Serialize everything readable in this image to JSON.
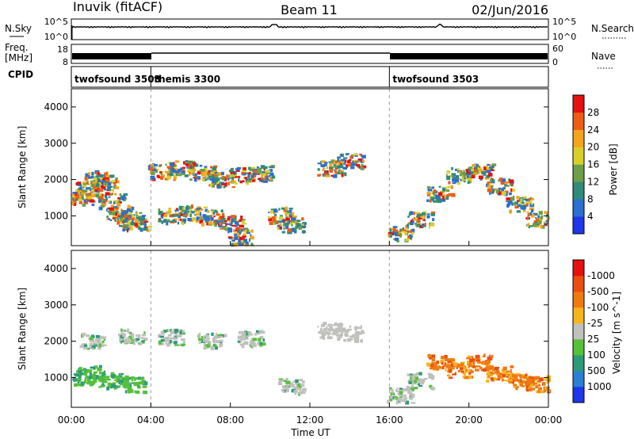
{
  "header": {
    "station": "Inuvik (fitACF)",
    "beam": "Beam 11",
    "date": "02/Jun/2016"
  },
  "strips": {
    "nsky_label": "N.Sky",
    "nsearch_label": "N.Search",
    "noise_ticks": [
      "10^5",
      "10^0"
    ],
    "freq_label_1": "Freq.",
    "freq_label_2": "[MHz]",
    "freq_ticks": [
      "18",
      "8"
    ],
    "nave_label": "Nave",
    "nave_ticks": [
      "60",
      "0"
    ],
    "cpid_label": "CPID",
    "cpid_segments": [
      {
        "name": "twofsound 3503",
        "start": 0,
        "end": 4
      },
      {
        "name": "themis 3300",
        "start": 4,
        "end": 16
      },
      {
        "name": "twofsound 3503",
        "start": 16,
        "end": 24
      }
    ]
  },
  "chart_data": [
    {
      "type": "heatmap",
      "title": "",
      "xlabel": "Time UT",
      "ylabel": "Slant Range [km]",
      "xlim": [
        0,
        24
      ],
      "ylim": [
        180,
        4500
      ],
      "y_ticks": [
        "1000",
        "2000",
        "3000",
        "4000"
      ],
      "colorbar": {
        "label": "Power [dB]",
        "ticks": [
          "4",
          "8",
          "12",
          "16",
          "20",
          "24",
          "28"
        ],
        "colors": [
          "#1f37e8",
          "#2b6fd0",
          "#2f8a79",
          "#6e9e4a",
          "#d8cf2e",
          "#f3a51d",
          "#ec5d16",
          "#e51010"
        ]
      },
      "series": [
        {
          "name": "",
          "points": [
            [
              0.4,
              1500
            ],
            [
              0.8,
              1700
            ],
            [
              1.2,
              2000
            ],
            [
              1.6,
              1900
            ],
            [
              2.0,
              1400
            ],
            [
              2.4,
              1050
            ],
            [
              2.8,
              900
            ],
            [
              3.2,
              800
            ],
            [
              4.5,
              2200
            ],
            [
              5.5,
              2300
            ],
            [
              6.5,
              2200
            ],
            [
              7.5,
              2000
            ],
            [
              8.5,
              2100
            ],
            [
              9.5,
              2150
            ],
            [
              5.0,
              1000
            ],
            [
              6.0,
              1050
            ],
            [
              7.0,
              950
            ],
            [
              8.0,
              800
            ],
            [
              8.5,
              400
            ],
            [
              10.5,
              1000
            ],
            [
              11.0,
              750
            ],
            [
              13.0,
              2300
            ],
            [
              14.0,
              2500
            ],
            [
              16.5,
              500
            ],
            [
              17.5,
              900
            ],
            [
              18.5,
              1600
            ],
            [
              19.5,
              2100
            ],
            [
              20.5,
              2200
            ],
            [
              21.5,
              1800
            ],
            [
              22.5,
              1300
            ],
            [
              23.5,
              900
            ]
          ]
        }
      ]
    },
    {
      "type": "heatmap",
      "title": "",
      "xlabel": "Time UT",
      "ylabel": "Slant Range [km]",
      "xlim": [
        0,
        24
      ],
      "ylim": [
        180,
        4500
      ],
      "x_ticks": [
        "00:00",
        "04:00",
        "08:00",
        "12:00",
        "16:00",
        "20:00",
        "00:00"
      ],
      "y_ticks": [
        "1000",
        "2000",
        "3000",
        "4000"
      ],
      "colorbar": {
        "label": "Velocity [m s^-1]",
        "ticks": [
          "1000",
          "500",
          "100",
          "25",
          "-25",
          "-100",
          "-500",
          "-1000"
        ],
        "colors": [
          "#1f37e8",
          "#2c7fd2",
          "#2e9a78",
          "#55c03a",
          "#c0c0bc",
          "#f4b51c",
          "#ef7a12",
          "#ea4e10",
          "#e51010"
        ]
      },
      "series": [
        {
          "name": "",
          "points": [
            [
              0.5,
              1000
            ],
            [
              1.0,
              1100
            ],
            [
              2.0,
              900
            ],
            [
              3.0,
              800
            ],
            [
              1.0,
              2000
            ],
            [
              3.0,
              2100
            ],
            [
              5.0,
              2100
            ],
            [
              7.0,
              2000
            ],
            [
              9.0,
              2050
            ],
            [
              11.0,
              750
            ],
            [
              13.0,
              2300
            ],
            [
              14.0,
              2200
            ],
            [
              16.5,
              500
            ],
            [
              17.5,
              900
            ],
            [
              18.5,
              1400
            ],
            [
              19.5,
              1200
            ],
            [
              20.5,
              1400
            ],
            [
              21.5,
              1100
            ],
            [
              22.5,
              900
            ],
            [
              23.5,
              800
            ]
          ]
        }
      ]
    }
  ]
}
